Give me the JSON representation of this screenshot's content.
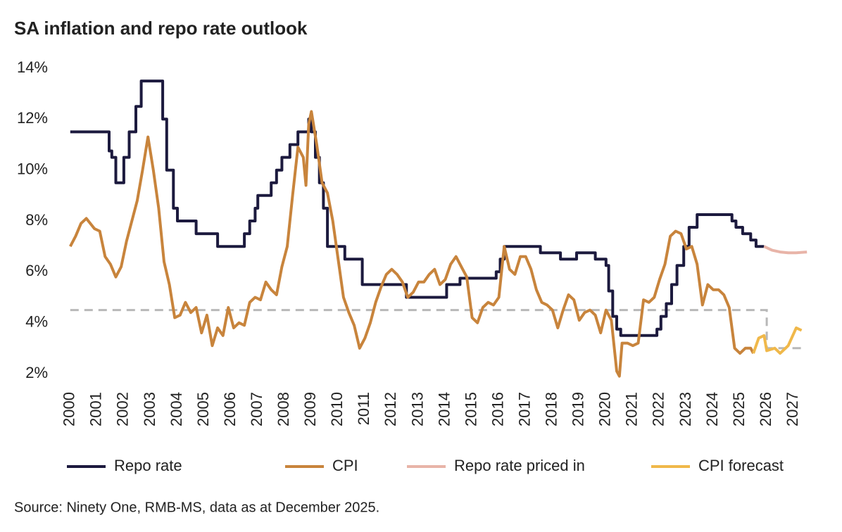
{
  "chart_data": {
    "type": "line",
    "title": "SA inflation and repo rate outlook",
    "source": "Source: Ninety One, RMB-MS, data as at December 2025.",
    "xlim": [
      1999.9,
      2027.6
    ],
    "xticks": [
      2000,
      2001,
      2002,
      2003,
      2004,
      2005,
      2006,
      2007,
      2008,
      2009,
      2010,
      2011,
      2012,
      2013,
      2014,
      2015,
      2016,
      2017,
      2018,
      2019,
      2020,
      2021,
      2022,
      2023,
      2024,
      2025,
      2026,
      2027
    ],
    "ylim": [
      2,
      14
    ],
    "yticks": [
      {
        "value": 2,
        "label": "2%"
      },
      {
        "value": 4,
        "label": "4%"
      },
      {
        "value": 6,
        "label": "6%"
      },
      {
        "value": 8,
        "label": "8%"
      },
      {
        "value": 10,
        "label": "10%"
      },
      {
        "value": 12,
        "label": "12%"
      },
      {
        "value": 14,
        "label": "14%"
      }
    ],
    "grid": false,
    "series": [
      {
        "name": "Repo rate",
        "color": "#1c1a3e",
        "x": [
          2000,
          2001.45,
          2001.45,
          2001.55,
          2001.55,
          2001.7,
          2001.7,
          2002.0,
          2002.0,
          2002.2,
          2002.2,
          2002.45,
          2002.45,
          2002.65,
          2002.65,
          2003.45,
          2003.45,
          2003.6,
          2003.6,
          2003.85,
          2003.85,
          2004.0,
          2004.0,
          2004.7,
          2004.7,
          2005.5,
          2005.5,
          2006.5,
          2006.5,
          2006.7,
          2006.7,
          2006.9,
          2006.9,
          2007.0,
          2007.0,
          2007.5,
          2007.5,
          2007.7,
          2007.7,
          2007.9,
          2007.9,
          2008.2,
          2008.2,
          2008.5,
          2008.5,
          2008.9,
          2008.9,
          2009.0,
          2009.0,
          2009.15,
          2009.15,
          2009.3,
          2009.3,
          2009.45,
          2009.45,
          2009.6,
          2009.6,
          2010.25,
          2010.25,
          2010.9,
          2010.9,
          2012.55,
          2012.55,
          2014.05,
          2014.05,
          2014.55,
          2014.55,
          2015.9,
          2015.9,
          2016.05,
          2016.05,
          2016.2,
          2016.2,
          2017.55,
          2017.55,
          2018.3,
          2018.3,
          2018.9,
          2018.9,
          2019.6,
          2019.6,
          2020.0,
          2020.0,
          2020.1,
          2020.1,
          2020.25,
          2020.25,
          2020.4,
          2020.4,
          2020.55,
          2020.55,
          2021.9,
          2021.9,
          2022.05,
          2022.05,
          2022.25,
          2022.25,
          2022.45,
          2022.45,
          2022.65,
          2022.65,
          2022.9,
          2022.9,
          2023.1,
          2023.1,
          2023.4,
          2023.4,
          2024.7,
          2024.7,
          2024.85,
          2024.85,
          2025.1,
          2025.1,
          2025.4,
          2025.4,
          2025.6,
          2025.6,
          2025.9
        ],
        "values": [
          11.5,
          11.5,
          10.75,
          10.75,
          10.5,
          10.5,
          9.5,
          9.5,
          10.5,
          10.5,
          11.5,
          11.5,
          12.5,
          12.5,
          13.5,
          13.5,
          12,
          12,
          10,
          10,
          8.5,
          8.5,
          8,
          8,
          7.5,
          7.5,
          7,
          7,
          7.5,
          7.5,
          8,
          8,
          8.5,
          8.5,
          9,
          9,
          9.5,
          9.5,
          10,
          10,
          10.5,
          10.5,
          11,
          11,
          11.5,
          11.5,
          12,
          12,
          11.5,
          11.5,
          10.5,
          10.5,
          9.5,
          9.5,
          8.5,
          8.5,
          7,
          7,
          6.5,
          6.5,
          5.5,
          5.5,
          5,
          5,
          5.5,
          5.5,
          5.75,
          5.75,
          6,
          6,
          6.5,
          6.5,
          7,
          7,
          6.75,
          6.75,
          6.5,
          6.5,
          6.75,
          6.75,
          6.5,
          6.5,
          6.25,
          6.25,
          5.25,
          5.25,
          4.25,
          4.25,
          3.75,
          3.75,
          3.5,
          3.5,
          3.75,
          3.75,
          4.25,
          4.25,
          4.75,
          4.75,
          5.5,
          5.5,
          6.25,
          6.25,
          7,
          7,
          7.75,
          7.75,
          8.25,
          8.25,
          8,
          8,
          7.75,
          7.75,
          7.5,
          7.5,
          7.25,
          7.25,
          7,
          7
        ]
      },
      {
        "name": "CPI",
        "color": "#c8843c",
        "x": [
          2000,
          2000.2,
          2000.4,
          2000.6,
          2000.9,
          2001.1,
          2001.3,
          2001.5,
          2001.7,
          2001.9,
          2002.1,
          2002.3,
          2002.5,
          2002.7,
          2002.9,
          2003.1,
          2003.3,
          2003.5,
          2003.7,
          2003.9,
          2004.1,
          2004.3,
          2004.5,
          2004.7,
          2004.9,
          2005.1,
          2005.3,
          2005.5,
          2005.7,
          2005.9,
          2006.1,
          2006.3,
          2006.5,
          2006.7,
          2006.9,
          2007.1,
          2007.3,
          2007.5,
          2007.7,
          2007.9,
          2008.1,
          2008.3,
          2008.5,
          2008.7,
          2008.8,
          2008.9,
          2009.0,
          2009.2,
          2009.4,
          2009.6,
          2009.8,
          2010.0,
          2010.2,
          2010.4,
          2010.6,
          2010.8,
          2011.0,
          2011.2,
          2011.4,
          2011.6,
          2011.8,
          2012.0,
          2012.2,
          2012.4,
          2012.6,
          2012.8,
          2013.0,
          2013.2,
          2013.4,
          2013.6,
          2013.8,
          2014.0,
          2014.2,
          2014.4,
          2014.6,
          2014.8,
          2015.0,
          2015.2,
          2015.4,
          2015.6,
          2015.8,
          2016.0,
          2016.2,
          2016.4,
          2016.6,
          2016.8,
          2017.0,
          2017.2,
          2017.4,
          2017.6,
          2017.8,
          2018.0,
          2018.2,
          2018.4,
          2018.6,
          2018.8,
          2019.0,
          2019.2,
          2019.4,
          2019.6,
          2019.8,
          2020.0,
          2020.2,
          2020.4,
          2020.5,
          2020.6,
          2020.8,
          2021.0,
          2021.2,
          2021.4,
          2021.6,
          2021.8,
          2022.0,
          2022.2,
          2022.4,
          2022.6,
          2022.8,
          2023.0,
          2023.2,
          2023.4,
          2023.6,
          2023.8,
          2024.0,
          2024.2,
          2024.4,
          2024.6,
          2024.8,
          2025.0,
          2025.2,
          2025.4,
          2025.5
        ],
        "values": [
          7.0,
          7.4,
          7.9,
          8.1,
          7.7,
          7.6,
          6.6,
          6.3,
          5.8,
          6.2,
          7.2,
          8.0,
          8.8,
          10.0,
          11.3,
          10.0,
          8.5,
          6.4,
          5.5,
          4.2,
          4.3,
          4.8,
          4.4,
          4.6,
          3.6,
          4.3,
          3.1,
          3.8,
          3.5,
          4.6,
          3.8,
          4.0,
          3.9,
          4.8,
          5.0,
          4.9,
          5.6,
          5.3,
          5.1,
          6.2,
          7.0,
          9.0,
          10.9,
          10.5,
          9.4,
          11.8,
          12.3,
          11.0,
          9.5,
          9.1,
          8.0,
          6.5,
          5.0,
          4.4,
          3.9,
          3.0,
          3.4,
          4.0,
          4.8,
          5.4,
          5.9,
          6.1,
          5.9,
          5.6,
          5.0,
          5.2,
          5.6,
          5.6,
          5.9,
          6.1,
          5.5,
          5.7,
          6.3,
          6.6,
          6.2,
          5.8,
          4.2,
          4.0,
          4.6,
          4.8,
          4.7,
          5.0,
          7.0,
          6.1,
          5.9,
          6.6,
          6.6,
          6.1,
          5.3,
          4.8,
          4.7,
          4.5,
          3.8,
          4.5,
          5.1,
          4.9,
          4.1,
          4.4,
          4.5,
          4.3,
          3.6,
          4.5,
          4.1,
          2.1,
          1.9,
          3.2,
          3.2,
          3.1,
          3.2,
          4.9,
          4.8,
          5.0,
          5.7,
          6.3,
          7.4,
          7.6,
          7.5,
          6.9,
          7.0,
          6.3,
          4.7,
          5.5,
          5.3,
          5.3,
          5.1,
          4.6,
          3.0,
          2.8,
          3.0,
          3.0,
          2.8
        ]
      },
      {
        "name": "Repo rate priced in",
        "color": "#e8b4a8",
        "x": [
          2025.9,
          2026.2,
          2026.5,
          2026.8,
          2027.1,
          2027.5
        ],
        "values": [
          7.0,
          6.85,
          6.78,
          6.75,
          6.75,
          6.78
        ]
      },
      {
        "name": "CPI forecast",
        "color": "#f0b84a",
        "x": [
          2025.5,
          2025.7,
          2025.9,
          2026.0,
          2026.3,
          2026.5,
          2026.8,
          2027.1,
          2027.3
        ],
        "values": [
          2.8,
          3.4,
          3.5,
          2.9,
          3.0,
          2.8,
          3.1,
          3.8,
          3.7
        ]
      }
    ],
    "reference_line": {
      "color": "#b8b8b8",
      "x": [
        2000,
        2026,
        2026,
        2027.3
      ],
      "values": [
        4.5,
        4.5,
        3.0,
        3.0
      ]
    }
  }
}
